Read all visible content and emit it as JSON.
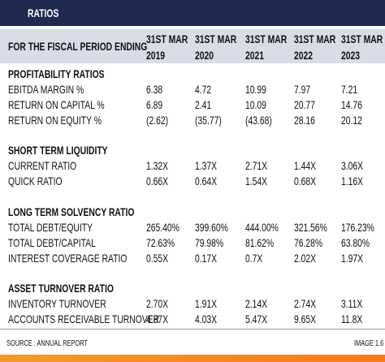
{
  "title": "RATIOS",
  "header": {
    "label": "FOR THE FISCAL PERIOD ENDING",
    "columns": [
      {
        "line1": "31ST MAR",
        "line2": "2019"
      },
      {
        "line1": "31ST MAR",
        "line2": "2020"
      },
      {
        "line1": "31ST MAR",
        "line2": "2021"
      },
      {
        "line1": "31ST MAR",
        "line2": "2022"
      },
      {
        "line1": "31ST MAR",
        "line2": "2023"
      }
    ]
  },
  "sections": [
    {
      "title": "PROFITABILITY RATIOS",
      "rows": [
        {
          "label": "EBITDA MARGIN %",
          "values": [
            "6.38",
            "4.72",
            "10.99",
            "7.97",
            "7.21"
          ]
        },
        {
          "label": "RETURN ON CAPITAL %",
          "values": [
            "6.89",
            "2.41",
            "10.09",
            "20.77",
            "14.76"
          ]
        },
        {
          "label": "RETURN ON EQUITY %",
          "values": [
            "(2.62)",
            "(35.77)",
            "(43.68)",
            "28.16",
            "20.12"
          ]
        }
      ]
    },
    {
      "title": "SHORT TERM LIQUIDITY",
      "rows": [
        {
          "label": "CURRENT RATIO",
          "values": [
            "1.32X",
            "1.37X",
            "2.71X",
            "1.44X",
            "3.06X"
          ]
        },
        {
          "label": "QUICK RATIO",
          "values": [
            "0.66X",
            "0.64X",
            "1.54X",
            "0.68X",
            "1.16X"
          ]
        }
      ]
    },
    {
      "title": "LONG TERM SOLVENCY RATIO",
      "rows": [
        {
          "label": "TOTAL DEBT/EQUITY",
          "values": [
            "265.40%",
            "399.60%",
            "444.00%",
            "321.56%",
            "176.23%"
          ]
        },
        {
          "label": "TOTAL DEBT/CAPITAL",
          "values": [
            "72.63%",
            "79.98%",
            "81.62%",
            "76.28%",
            "63.80%"
          ]
        },
        {
          "label": "INTEREST COVERAGE RATIO",
          "values": [
            "0.55X",
            "0.17X",
            "0.7X",
            "2.02X",
            "1.97X"
          ]
        }
      ]
    },
    {
      "title": "ASSET TURNOVER RATIO",
      "rows": [
        {
          "label": "INVENTORY TURNOVER",
          "values": [
            "2.70X",
            "1.91X",
            "2.14X",
            "2.74X",
            "3.11X"
          ]
        },
        {
          "label": "ACCOUNTS RECEIVABLE TURNOVER",
          "values": [
            "4.87X",
            "4.03X",
            "5.47X",
            "9.65X",
            "11.8X"
          ]
        }
      ]
    }
  ],
  "footer": {
    "source": "SOURCE : ANNUAL REPORT",
    "image": "IMAGE 1.6"
  }
}
